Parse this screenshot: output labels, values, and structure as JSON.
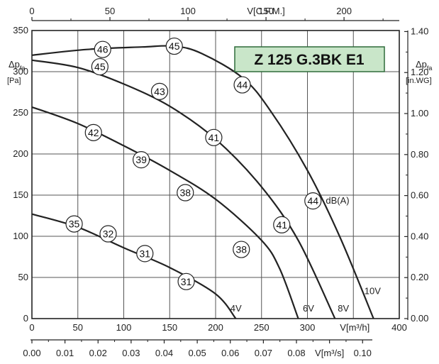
{
  "chart_data": {
    "type": "line",
    "title": "Z 125 G.3BK E1",
    "title_bg": "#c9e6c9",
    "title_border": "#2f6b3a",
    "axes": {
      "x_bottom": {
        "label": "V[m³/h]",
        "range": [
          0,
          400
        ],
        "ticks": [
          0,
          50,
          100,
          150,
          200,
          250,
          300,
          350,
          400
        ]
      },
      "x_bottom2": {
        "label": "V[m³/s]",
        "range": [
          0,
          0.1111
        ],
        "ticks": [
          "0.00",
          "0.01",
          "0.02",
          "0.03",
          "0.04",
          "0.05",
          "0.06",
          "0.07",
          "0.08",
          "0.09",
          "0.10"
        ]
      },
      "x_top": {
        "label": "V[C.F.M.]",
        "range": [
          0,
          235.4
        ],
        "ticks": [
          0,
          50,
          100,
          150,
          200
        ]
      },
      "y_left": {
        "label_main": "Δp",
        "label_sub": "fa",
        "unit": "[Pa]",
        "range": [
          0,
          350
        ],
        "ticks": [
          0,
          50,
          100,
          150,
          200,
          250,
          300,
          350
        ]
      },
      "y_right": {
        "label_main": "Δp",
        "label_sub": "fa",
        "unit": "[in.WG]",
        "range": [
          0,
          1.405
        ],
        "ticks": [
          "0.00",
          "0.20",
          "0.40",
          "0.60",
          "0.80",
          "1.00",
          "1.20",
          "1.40"
        ]
      }
    },
    "grid": true,
    "series": [
      {
        "name": "10V",
        "points": [
          [
            0,
            320
          ],
          [
            60,
            327
          ],
          [
            120,
            330
          ],
          [
            155,
            331
          ],
          [
            185,
            322
          ],
          [
            230,
            292
          ],
          [
            260,
            252
          ],
          [
            300,
            180
          ],
          [
            335,
            100
          ],
          [
            372,
            0
          ]
        ]
      },
      {
        "name": "8V",
        "points": [
          [
            0,
            314
          ],
          [
            50,
            305
          ],
          [
            100,
            285
          ],
          [
            150,
            258
          ],
          [
            200,
            218
          ],
          [
            250,
            160
          ],
          [
            290,
            95
          ],
          [
            330,
            0
          ]
        ]
      },
      {
        "name": "6V",
        "points": [
          [
            0,
            257
          ],
          [
            50,
            237
          ],
          [
            100,
            210
          ],
          [
            150,
            180
          ],
          [
            200,
            145
          ],
          [
            250,
            95
          ],
          [
            270,
            60
          ],
          [
            290,
            0
          ]
        ]
      },
      {
        "name": "4V",
        "points": [
          [
            0,
            127
          ],
          [
            50,
            111
          ],
          [
            100,
            86
          ],
          [
            150,
            62
          ],
          [
            200,
            30
          ],
          [
            222,
            0
          ]
        ]
      }
    ],
    "series_color": "#222222",
    "dB_markers": [
      {
        "label": "46",
        "x": 77,
        "y": 327
      },
      {
        "label": "45",
        "x": 155,
        "y": 331
      },
      {
        "label": "45",
        "x": 74,
        "y": 306
      },
      {
        "label": "43",
        "x": 139,
        "y": 276
      },
      {
        "label": "44",
        "x": 229,
        "y": 284
      },
      {
        "label": "42",
        "x": 67,
        "y": 226
      },
      {
        "label": "41",
        "x": 198,
        "y": 220
      },
      {
        "label": "39",
        "x": 119,
        "y": 193
      },
      {
        "label": "38",
        "x": 167,
        "y": 153
      },
      {
        "label": "44",
        "x": 306,
        "y": 143
      },
      {
        "label": "35",
        "x": 46,
        "y": 115
      },
      {
        "label": "32",
        "x": 83,
        "y": 103
      },
      {
        "label": "41",
        "x": 272,
        "y": 114
      },
      {
        "label": "31",
        "x": 123,
        "y": 79
      },
      {
        "label": "38",
        "x": 228,
        "y": 84
      },
      {
        "label": "31",
        "x": 168,
        "y": 45
      }
    ],
    "annotations": [
      {
        "text": "dB(A)",
        "x": 320,
        "y": 143
      },
      {
        "text": "10V",
        "x": 362,
        "y": 33
      },
      {
        "text": "8V",
        "x": 333,
        "y": 12
      },
      {
        "text": "6V",
        "x": 295,
        "y": 12
      },
      {
        "text": "4V",
        "x": 216,
        "y": 12
      }
    ]
  }
}
